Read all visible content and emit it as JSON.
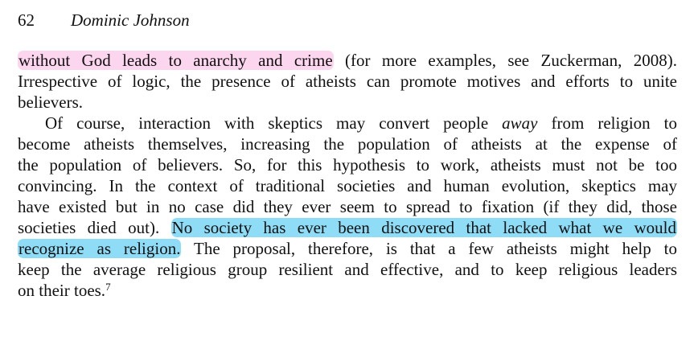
{
  "header": {
    "page_number": "62",
    "author": "Dominic Johnson"
  },
  "paragraph1": {
    "line1_highlight": "without God leads to anarchy and crime",
    "line1_rest": "(for more examples, see Zuckerman, 2008).",
    "line2": "Irrespective of logic, the presence of atheists can promote motives and efforts to unite",
    "line3": "believers."
  },
  "paragraph2": {
    "line1_before": "Of course, interaction with skeptics may convert people",
    "line1_emph": "away",
    "line1_after": "from religion to",
    "line2": "become atheists themselves, increasing the population of atheists at the expense of",
    "line3": "the population of believers. So, for this hypothesis to work, atheists must not be too",
    "line4": "convincing. In the context of traditional societies and human evolution, skeptics may",
    "line5": "have existed but in no case did they ever seem to spread to fixation (if they did, those",
    "line6_before": "societies died out).",
    "line6_highlight": "No society has ever been discovered that lacked what we would",
    "line7_highlight": "recognize as religion.",
    "line7_rest": "The proposal, therefore, is that a few atheists might help to",
    "line8": "keep the average religious group resilient and effective, and to keep religious leaders",
    "line9": "on their toes.",
    "footnote_ref": "7"
  },
  "highlight_colors": {
    "pink": "#fcd5ee",
    "blue": "#8fdcf7"
  }
}
